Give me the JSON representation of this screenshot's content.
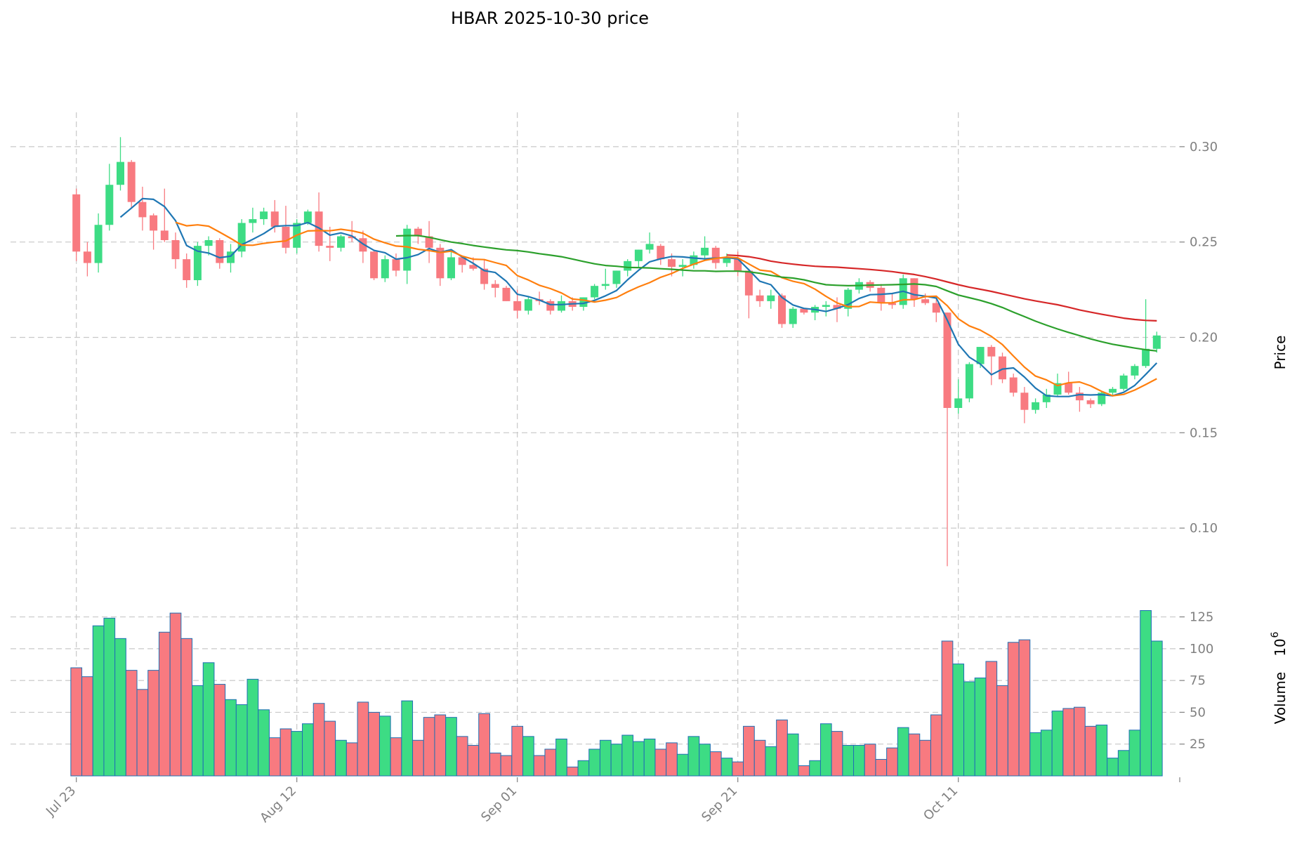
{
  "chart_data": {
    "type": "candlestick",
    "title": "HBAR  2025-10-30  price",
    "price_axis": {
      "label": "Price",
      "ticks": [
        "0.10",
        "0.15",
        "0.20",
        "0.25",
        "0.30"
      ],
      "tick_values": [
        0.1,
        0.15,
        0.2,
        0.25,
        0.3
      ],
      "ylim": [
        0.075,
        0.318
      ]
    },
    "volume_axis": {
      "label": "Volume",
      "exponent_label": "10",
      "exponent": "6",
      "ticks": [
        "25",
        "50",
        "75",
        "100",
        "125"
      ],
      "tick_values": [
        25,
        50,
        75,
        100,
        125
      ],
      "ylim": [
        0,
        138
      ]
    },
    "x_ticks": [
      {
        "label": "Jul 23",
        "index": 0
      },
      {
        "label": "Aug 12",
        "index": 20
      },
      {
        "label": "Sep 01",
        "index": 40
      },
      {
        "label": "Sep 21",
        "index": 60
      },
      {
        "label": "Oct 11",
        "index": 80
      }
    ],
    "colors": {
      "up": "#3ddc84",
      "down": "#f87a80",
      "edge": "#1f6fb4",
      "ma5": "#1f77b4",
      "ma10": "#ff7f0e",
      "ma20": "#2ca02c",
      "ma30": "#d62728",
      "grid": "#c8c8c8"
    },
    "candles": [
      [
        0.275,
        0.278,
        0.24,
        0.245
      ],
      [
        0.245,
        0.25,
        0.232,
        0.239
      ],
      [
        0.239,
        0.265,
        0.234,
        0.259
      ],
      [
        0.259,
        0.291,
        0.256,
        0.28
      ],
      [
        0.28,
        0.305,
        0.277,
        0.292
      ],
      [
        0.292,
        0.293,
        0.268,
        0.271
      ],
      [
        0.271,
        0.279,
        0.256,
        0.263
      ],
      [
        0.264,
        0.265,
        0.246,
        0.256
      ],
      [
        0.256,
        0.278,
        0.25,
        0.251
      ],
      [
        0.251,
        0.255,
        0.236,
        0.241
      ],
      [
        0.241,
        0.244,
        0.226,
        0.23
      ],
      [
        0.23,
        0.25,
        0.227,
        0.248
      ],
      [
        0.248,
        0.253,
        0.243,
        0.251
      ],
      [
        0.251,
        0.252,
        0.236,
        0.239
      ],
      [
        0.239,
        0.249,
        0.234,
        0.245
      ],
      [
        0.245,
        0.262,
        0.242,
        0.26
      ],
      [
        0.26,
        0.268,
        0.255,
        0.262
      ],
      [
        0.262,
        0.268,
        0.259,
        0.266
      ],
      [
        0.266,
        0.272,
        0.255,
        0.258
      ],
      [
        0.258,
        0.269,
        0.244,
        0.247
      ],
      [
        0.247,
        0.262,
        0.244,
        0.26
      ],
      [
        0.26,
        0.267,
        0.259,
        0.266
      ],
      [
        0.266,
        0.276,
        0.245,
        0.248
      ],
      [
        0.248,
        0.258,
        0.24,
        0.247
      ],
      [
        0.247,
        0.254,
        0.245,
        0.253
      ],
      [
        0.253,
        0.261,
        0.25,
        0.252
      ],
      [
        0.252,
        0.256,
        0.239,
        0.245
      ],
      [
        0.245,
        0.246,
        0.23,
        0.231
      ],
      [
        0.231,
        0.243,
        0.229,
        0.241
      ],
      [
        0.241,
        0.244,
        0.232,
        0.235
      ],
      [
        0.235,
        0.259,
        0.228,
        0.257
      ],
      [
        0.257,
        0.258,
        0.249,
        0.253
      ],
      [
        0.253,
        0.261,
        0.239,
        0.247
      ],
      [
        0.247,
        0.249,
        0.227,
        0.231
      ],
      [
        0.231,
        0.245,
        0.23,
        0.242
      ],
      [
        0.242,
        0.243,
        0.234,
        0.238
      ],
      [
        0.238,
        0.242,
        0.235,
        0.236
      ],
      [
        0.236,
        0.241,
        0.225,
        0.228
      ],
      [
        0.228,
        0.23,
        0.221,
        0.226
      ],
      [
        0.226,
        0.227,
        0.219,
        0.219
      ],
      [
        0.219,
        0.225,
        0.21,
        0.214
      ],
      [
        0.214,
        0.221,
        0.212,
        0.22
      ],
      [
        0.22,
        0.224,
        0.217,
        0.219
      ],
      [
        0.219,
        0.22,
        0.212,
        0.214
      ],
      [
        0.214,
        0.222,
        0.213,
        0.219
      ],
      [
        0.219,
        0.221,
        0.214,
        0.216
      ],
      [
        0.216,
        0.221,
        0.214,
        0.221
      ],
      [
        0.221,
        0.228,
        0.22,
        0.227
      ],
      [
        0.227,
        0.236,
        0.225,
        0.228
      ],
      [
        0.228,
        0.235,
        0.226,
        0.235
      ],
      [
        0.235,
        0.241,
        0.232,
        0.24
      ],
      [
        0.24,
        0.246,
        0.237,
        0.246
      ],
      [
        0.246,
        0.255,
        0.244,
        0.249
      ],
      [
        0.248,
        0.249,
        0.238,
        0.241
      ],
      [
        0.241,
        0.244,
        0.232,
        0.237
      ],
      [
        0.237,
        0.241,
        0.232,
        0.238
      ],
      [
        0.238,
        0.245,
        0.236,
        0.243
      ],
      [
        0.243,
        0.253,
        0.24,
        0.247
      ],
      [
        0.247,
        0.248,
        0.236,
        0.239
      ],
      [
        0.239,
        0.244,
        0.237,
        0.242
      ],
      [
        0.241,
        0.245,
        0.232,
        0.235
      ],
      [
        0.235,
        0.236,
        0.21,
        0.222
      ],
      [
        0.222,
        0.225,
        0.216,
        0.219
      ],
      [
        0.219,
        0.225,
        0.215,
        0.222
      ],
      [
        0.222,
        0.223,
        0.205,
        0.207
      ],
      [
        0.207,
        0.216,
        0.205,
        0.215
      ],
      [
        0.215,
        0.215,
        0.212,
        0.213
      ],
      [
        0.213,
        0.217,
        0.209,
        0.216
      ],
      [
        0.216,
        0.219,
        0.211,
        0.217
      ],
      [
        0.217,
        0.221,
        0.208,
        0.215
      ],
      [
        0.215,
        0.226,
        0.211,
        0.225
      ],
      [
        0.225,
        0.231,
        0.223,
        0.229
      ],
      [
        0.229,
        0.23,
        0.224,
        0.226
      ],
      [
        0.226,
        0.228,
        0.214,
        0.218
      ],
      [
        0.218,
        0.223,
        0.215,
        0.217
      ],
      [
        0.217,
        0.233,
        0.215,
        0.231
      ],
      [
        0.231,
        0.231,
        0.216,
        0.22
      ],
      [
        0.22,
        0.223,
        0.217,
        0.218
      ],
      [
        0.218,
        0.222,
        0.208,
        0.213
      ],
      [
        0.213,
        0.213,
        0.08,
        0.163
      ],
      [
        0.163,
        0.178,
        0.16,
        0.168
      ],
      [
        0.168,
        0.187,
        0.166,
        0.186
      ],
      [
        0.186,
        0.195,
        0.184,
        0.195
      ],
      [
        0.195,
        0.196,
        0.175,
        0.19
      ],
      [
        0.19,
        0.192,
        0.176,
        0.178
      ],
      [
        0.179,
        0.181,
        0.169,
        0.171
      ],
      [
        0.171,
        0.174,
        0.155,
        0.162
      ],
      [
        0.162,
        0.168,
        0.16,
        0.166
      ],
      [
        0.166,
        0.173,
        0.163,
        0.17
      ],
      [
        0.17,
        0.181,
        0.169,
        0.176
      ],
      [
        0.176,
        0.182,
        0.17,
        0.171
      ],
      [
        0.171,
        0.174,
        0.161,
        0.167
      ],
      [
        0.167,
        0.168,
        0.163,
        0.165
      ],
      [
        0.165,
        0.172,
        0.164,
        0.171
      ],
      [
        0.171,
        0.174,
        0.169,
        0.173
      ],
      [
        0.173,
        0.181,
        0.172,
        0.18
      ],
      [
        0.18,
        0.186,
        0.178,
        0.185
      ],
      [
        0.185,
        0.22,
        0.184,
        0.194
      ],
      [
        0.194,
        0.203,
        0.192,
        0.201
      ]
    ],
    "volumes": [
      85,
      78,
      118,
      124,
      108,
      83,
      68,
      83,
      113,
      128,
      108,
      71,
      89,
      72,
      60,
      56,
      76,
      52,
      30,
      37,
      35,
      41,
      57,
      43,
      28,
      26,
      58,
      50,
      47,
      30,
      59,
      28,
      46,
      48,
      46,
      31,
      24,
      49,
      18,
      16,
      39,
      31,
      16,
      21,
      29,
      7,
      12,
      21,
      28,
      25,
      32,
      27,
      29,
      21,
      26,
      17,
      31,
      25,
      19,
      14,
      11,
      39,
      28,
      23,
      44,
      33,
      8,
      12,
      41,
      35,
      24,
      24,
      25,
      13,
      22,
      38,
      33,
      28,
      48,
      106,
      88,
      74,
      77,
      90,
      71,
      105,
      107,
      34,
      36,
      51,
      53,
      54,
      39,
      40,
      14,
      20,
      36,
      130,
      106
    ],
    "ma": [
      {
        "period": 5,
        "values": [
          null,
          null,
          null,
          null,
          0.263,
          0.2678,
          0.2728,
          0.2724,
          0.2686,
          0.2612,
          0.2482,
          0.2452,
          0.2442,
          0.2418,
          0.2426,
          0.2486,
          0.2514,
          0.2544,
          0.2582,
          0.2586,
          0.2586,
          0.2602,
          0.2574,
          0.2536,
          0.2548,
          0.2532,
          0.249,
          0.2456,
          0.2444,
          0.241,
          0.2418,
          0.2434,
          0.2466,
          0.2446,
          0.246,
          0.2422,
          0.2388,
          0.235,
          0.234,
          0.2294,
          0.2226,
          0.2214,
          0.2196,
          0.2172,
          0.2172,
          0.2176,
          0.2178,
          0.2194,
          0.2218,
          0.2246,
          0.2302,
          0.2352,
          0.2396,
          0.2412,
          0.2424,
          0.2422,
          0.2416,
          0.2412,
          0.2416,
          0.2418,
          0.2412,
          0.2354,
          0.2294,
          0.2276,
          0.221,
          0.217,
          0.2152,
          0.2146,
          0.2136,
          0.2152,
          0.2172,
          0.2204,
          0.2224,
          0.2226,
          0.223,
          0.2242,
          0.2224,
          0.2216,
          0.2206,
          0.209,
          0.1964,
          0.1896,
          0.186,
          0.1804,
          0.1834,
          0.184,
          0.1792,
          0.1734,
          0.1694,
          0.169,
          0.169,
          0.17,
          0.1698,
          0.17,
          0.1694,
          0.1712,
          0.1748,
          0.1806,
          0.1866
        ]
      },
      {
        "period": 10,
        "values": [
          null,
          null,
          null,
          null,
          null,
          null,
          null,
          null,
          null,
          0.2603,
          0.2585,
          0.259,
          0.2583,
          0.2552,
          0.2519,
          0.2484,
          0.2483,
          0.2493,
          0.25,
          0.2506,
          0.2536,
          0.2558,
          0.256,
          0.2559,
          0.2567,
          0.2559,
          0.2546,
          0.2515,
          0.2496,
          0.2479,
          0.2475,
          0.2462,
          0.2455,
          0.2445,
          0.2452,
          0.2426,
          0.241,
          0.2408,
          0.2392,
          0.2377,
          0.2324,
          0.2301,
          0.2273,
          0.2256,
          0.2233,
          0.2201,
          0.2196,
          0.2185,
          0.2195,
          0.2209,
          0.2239,
          0.2265,
          0.2287,
          0.2315,
          0.2335,
          0.2362,
          0.2384,
          0.2404,
          0.2414,
          0.2421,
          0.2417,
          0.2385,
          0.2353,
          0.2346,
          0.2313,
          0.2294,
          0.2282,
          0.2253,
          0.2215,
          0.2181,
          0.2161,
          0.2162,
          0.2185,
          0.2181,
          0.2181,
          0.2197,
          0.2198,
          0.2214,
          0.2216,
          0.2166,
          0.2097,
          0.206,
          0.2038,
          0.2005,
          0.1962,
          0.1902,
          0.1844,
          0.1797,
          0.1777,
          0.1747,
          0.1762,
          0.1766,
          0.1746,
          0.1717,
          0.1694,
          0.1701,
          0.1724,
          0.1753,
          0.1783
        ]
      },
      {
        "period": 20,
        "values": [
          null,
          null,
          null,
          null,
          null,
          null,
          null,
          null,
          null,
          null,
          null,
          null,
          null,
          null,
          null,
          null,
          null,
          null,
          null,
          null,
          null,
          null,
          null,
          null,
          null,
          null,
          null,
          null,
          null,
          0.2532,
          0.2534,
          0.2534,
          0.2525,
          0.2512,
          0.25,
          0.2492,
          0.2482,
          0.2474,
          0.2466,
          0.2459,
          0.2455,
          0.2448,
          0.2439,
          0.2431,
          0.2423,
          0.2411,
          0.2398,
          0.2386,
          0.2377,
          0.2373,
          0.2367,
          0.2366,
          0.2364,
          0.236,
          0.2357,
          0.2353,
          0.2349,
          0.2349,
          0.2346,
          0.2347,
          0.2347,
          0.2344,
          0.2336,
          0.2325,
          0.2316,
          0.2311,
          0.2302,
          0.2288,
          0.2276,
          0.2273,
          0.2271,
          0.2272,
          0.2274,
          0.2275,
          0.2276,
          0.2278,
          0.228,
          0.2276,
          0.2267,
          0.2244,
          0.2222,
          0.2208,
          0.2194,
          0.2177,
          0.2157,
          0.2132,
          0.2109,
          0.2085,
          0.2064,
          0.2044,
          0.2026,
          0.2009,
          0.1992,
          0.1977,
          0.1964,
          0.1954,
          0.1944,
          0.1935,
          0.1929
        ]
      },
      {
        "period": 30,
        "values": [
          null,
          null,
          null,
          null,
          null,
          null,
          null,
          null,
          null,
          null,
          null,
          null,
          null,
          null,
          null,
          null,
          null,
          null,
          null,
          null,
          null,
          null,
          null,
          null,
          null,
          null,
          null,
          null,
          null,
          null,
          null,
          null,
          null,
          null,
          null,
          null,
          null,
          null,
          null,
          null,
          null,
          null,
          null,
          null,
          null,
          null,
          null,
          null,
          null,
          null,
          null,
          null,
          null,
          null,
          null,
          null,
          null,
          null,
          null,
          0.2432,
          0.2429,
          0.2423,
          0.2413,
          0.24,
          0.2391,
          0.2384,
          0.2378,
          0.2373,
          0.237,
          0.2368,
          0.2364,
          0.236,
          0.2356,
          0.2351,
          0.2345,
          0.2337,
          0.233,
          0.2319,
          0.2306,
          0.2291,
          0.2276,
          0.2263,
          0.2252,
          0.2241,
          0.2228,
          0.2215,
          0.2202,
          0.2191,
          0.2181,
          0.2171,
          0.2158,
          0.2144,
          0.2132,
          0.2121,
          0.2111,
          0.2101,
          0.2094,
          0.2089,
          0.2087
        ]
      }
    ]
  }
}
